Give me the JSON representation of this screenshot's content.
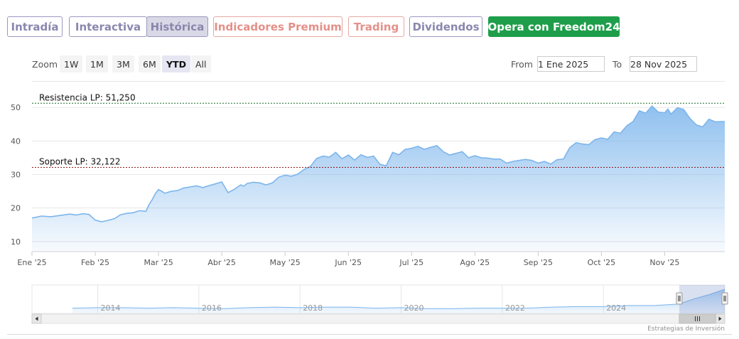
{
  "tabs": [
    {
      "label": "Intradía",
      "style": "gray"
    },
    {
      "label": "Interactiva",
      "style": "gray"
    },
    {
      "label": "Histórica",
      "style": "gray",
      "active": true
    },
    {
      "label": "Indicadores Premium",
      "style": "red"
    },
    {
      "label": "Trading",
      "style": "red"
    },
    {
      "label": "Dividendos",
      "style": "gray"
    },
    {
      "label": "Opera con Freedom24",
      "style": "green"
    }
  ],
  "range_selector": {
    "zoom_label": "Zoom",
    "buttons": [
      "1W",
      "1M",
      "3M",
      "6M",
      "YTD",
      "All"
    ],
    "selected": "YTD",
    "from_label": "From",
    "from_value": "1 Ene 2025",
    "to_label": "To",
    "to_value": "28 Nov 2025"
  },
  "credits": "Estrategias de Inversión",
  "colors": {
    "line": "#7cb5ec",
    "resistance": "#1a6b2a",
    "support": "#8b1a1a",
    "green_button": "#1e9e4a"
  },
  "chart_data": {
    "type": "area",
    "y_ticks": [
      "10",
      "20",
      "30",
      "40",
      "50"
    ],
    "ylim": [
      7,
      53
    ],
    "xlim": [
      0,
      10.95
    ],
    "x_tick_labels": [
      "Ene '25",
      "Feb '25",
      "Mar '25",
      "Abr '25",
      "May '25",
      "Jun '25",
      "Jul '25",
      "Ago '25",
      "Sep '25",
      "Oct '25",
      "Nov '25"
    ],
    "annotations": [
      {
        "label": "Resistencia LP: 51,250",
        "value": 51.25,
        "kind": "resistance"
      },
      {
        "label": "Soporte LP: 32,122",
        "value": 32.122,
        "kind": "support"
      }
    ],
    "series": [
      {
        "x": [
          0,
          0.15,
          0.3,
          0.45,
          0.6,
          0.7,
          0.8,
          0.9,
          1.0,
          1.1,
          1.2,
          1.3,
          1.4,
          1.5,
          1.6,
          1.7,
          1.8,
          1.85,
          1.9,
          1.95,
          2.0,
          2.05,
          2.1,
          2.2,
          2.3,
          2.4,
          2.5,
          2.6,
          2.7,
          2.8,
          2.9,
          3.0,
          3.1,
          3.2,
          3.25,
          3.3,
          3.35,
          3.4,
          3.5,
          3.6,
          3.7,
          3.8,
          3.9,
          4.0,
          4.1,
          4.2,
          4.3,
          4.4,
          4.5,
          4.6,
          4.7,
          4.8,
          4.9,
          5.0,
          5.1,
          5.2,
          5.3,
          5.4,
          5.5,
          5.6,
          5.7,
          5.8,
          5.9,
          6.0,
          6.1,
          6.2,
          6.3,
          6.4,
          6.5,
          6.6,
          6.7,
          6.8,
          6.9,
          7.0,
          7.1,
          7.2,
          7.3,
          7.4,
          7.5,
          7.6,
          7.7,
          7.8,
          7.9,
          8.0,
          8.1,
          8.2,
          8.3,
          8.4,
          8.5,
          8.6,
          8.7,
          8.8,
          8.9,
          9.0,
          9.1,
          9.2,
          9.3,
          9.4,
          9.5,
          9.6,
          9.7,
          9.8,
          9.9,
          10.0,
          10.05,
          10.1,
          10.2,
          10.3,
          10.4,
          10.5,
          10.6,
          10.7,
          10.8,
          10.9,
          10.95
        ],
        "y": [
          17,
          17.6,
          17.4,
          17.8,
          18.2,
          17.9,
          18.3,
          18.1,
          16.4,
          15.9,
          16.3,
          16.8,
          18.0,
          18.4,
          18.6,
          19.2,
          19.0,
          21.0,
          22.5,
          24.3,
          25.5,
          25.0,
          24.4,
          25.0,
          25.2,
          26.0,
          26.3,
          26.6,
          26.1,
          26.7,
          27.2,
          27.8,
          24.6,
          25.6,
          26.3,
          26.9,
          26.5,
          27.3,
          27.7,
          27.5,
          26.9,
          27.5,
          29.2,
          29.8,
          29.5,
          30.1,
          31.5,
          32.4,
          34.8,
          35.5,
          35.2,
          36.6,
          34.7,
          35.8,
          34.3,
          35.9,
          35.1,
          35.5,
          33.0,
          32.6,
          36.6,
          35.9,
          37.5,
          37.8,
          38.4,
          37.5,
          38.1,
          38.6,
          36.8,
          35.8,
          36.3,
          36.8,
          35.0,
          35.6,
          35.0,
          34.9,
          34.6,
          34.6,
          33.4,
          33.9,
          34.2,
          34.5,
          34.2,
          33.4,
          33.9,
          33.1,
          34.4,
          34.6,
          38.0,
          39.5,
          39.1,
          38.9,
          40.4,
          40.9,
          40.5,
          42.7,
          42.3,
          44.5,
          45.8,
          49.0,
          48.3,
          50.4,
          48.6,
          48.4,
          49.5,
          48.0,
          49.9,
          49.4,
          46.7,
          44.8,
          44.2,
          46.5,
          45.7,
          45.8,
          45.8
        ]
      }
    ],
    "navigator": {
      "year_labels": [
        "2014",
        "2016",
        "2018",
        "2020",
        "2022",
        "2024"
      ],
      "x": [
        2013,
        2013.5,
        2014,
        2014.5,
        2015,
        2015.5,
        2016,
        2016.5,
        2017,
        2017.5,
        2018,
        2018.5,
        2019,
        2019.5,
        2020,
        2020.5,
        2021,
        2021.5,
        2022,
        2022.5,
        2023,
        2023.5,
        2024,
        2024.5,
        2025,
        2025.3,
        2025.6,
        2025.9
      ],
      "y": [
        10,
        11,
        11,
        10,
        11,
        10,
        9,
        11,
        12,
        11,
        12,
        12,
        10,
        11,
        9,
        9,
        10,
        10,
        10,
        12,
        13,
        13,
        15,
        15,
        18,
        28,
        36,
        46
      ],
      "xlim": [
        2012.2,
        2025.9
      ],
      "ylim": [
        0,
        50
      ],
      "selected_range": [
        2025.0,
        2025.9
      ]
    }
  }
}
